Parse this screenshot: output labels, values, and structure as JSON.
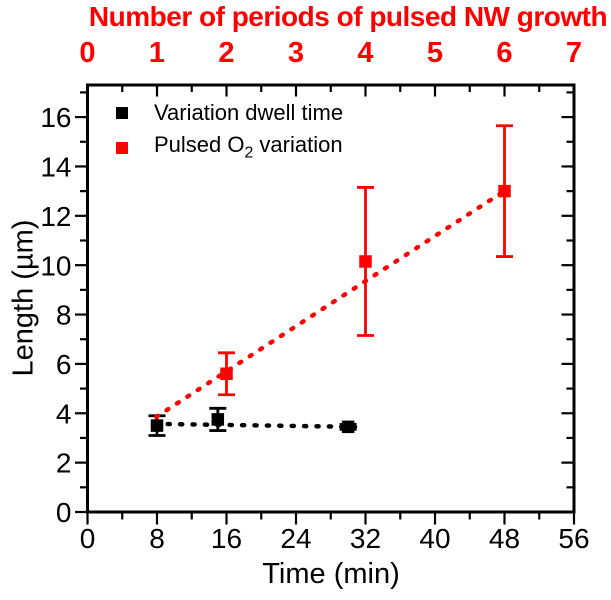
{
  "figure": {
    "background": "#ffffff",
    "frame_color": "#000000",
    "accent_red": "#ff0000"
  },
  "chart_data": {
    "type": "scatter",
    "xlabel": "Time (min)",
    "ylabel": "Length (µm)",
    "xlim": [
      0,
      56
    ],
    "ylim": [
      0,
      17.3
    ],
    "x_major_ticks": [
      0,
      8,
      16,
      24,
      32,
      40,
      48,
      56
    ],
    "x_minor_step": 4,
    "y_major_ticks": [
      0,
      2,
      4,
      6,
      8,
      10,
      12,
      14,
      16
    ],
    "y_minor_step": 1,
    "grid": false,
    "top_axis": {
      "title": "Number of periods of pulsed NW growth",
      "ticks": [
        0,
        1,
        2,
        3,
        4,
        5,
        6,
        7
      ],
      "min": 0,
      "max": 7,
      "minutes_per_period": 8,
      "color": "#ff0000"
    },
    "series": [
      {
        "name": "Variation dwell time",
        "color": "#000000",
        "marker": "square",
        "line_style": "dotted",
        "points": [
          {
            "x": 8,
            "y": 3.5,
            "err": 0.4
          },
          {
            "x": 15,
            "y": 3.75,
            "err": 0.45
          },
          {
            "x": 30,
            "y": 3.45,
            "err": 0.1
          }
        ],
        "trend": {
          "x1": 7.8,
          "y1": 3.57,
          "x2": 30.8,
          "y2": 3.45
        }
      },
      {
        "name": "Pulsed O2 variation",
        "color": "#ff0000",
        "marker": "square",
        "line_style": "dotted",
        "points": [
          {
            "x": 16,
            "y": 5.6,
            "err": 0.85
          },
          {
            "x": 32,
            "y": 10.15,
            "err": 3.0
          },
          {
            "x": 48,
            "y": 13.0,
            "err": 2.65
          }
        ],
        "trend": {
          "x1": 7.9,
          "y1": 3.85,
          "x2": 48.4,
          "y2": 13.1
        }
      }
    ],
    "legend": {
      "position": "top-left",
      "items": [
        {
          "label": "Variation dwell time",
          "color": "#000000"
        },
        {
          "prefix": "Pulsed O",
          "sub": "2",
          "suffix": " variation",
          "color": "#ff0000"
        }
      ]
    }
  }
}
